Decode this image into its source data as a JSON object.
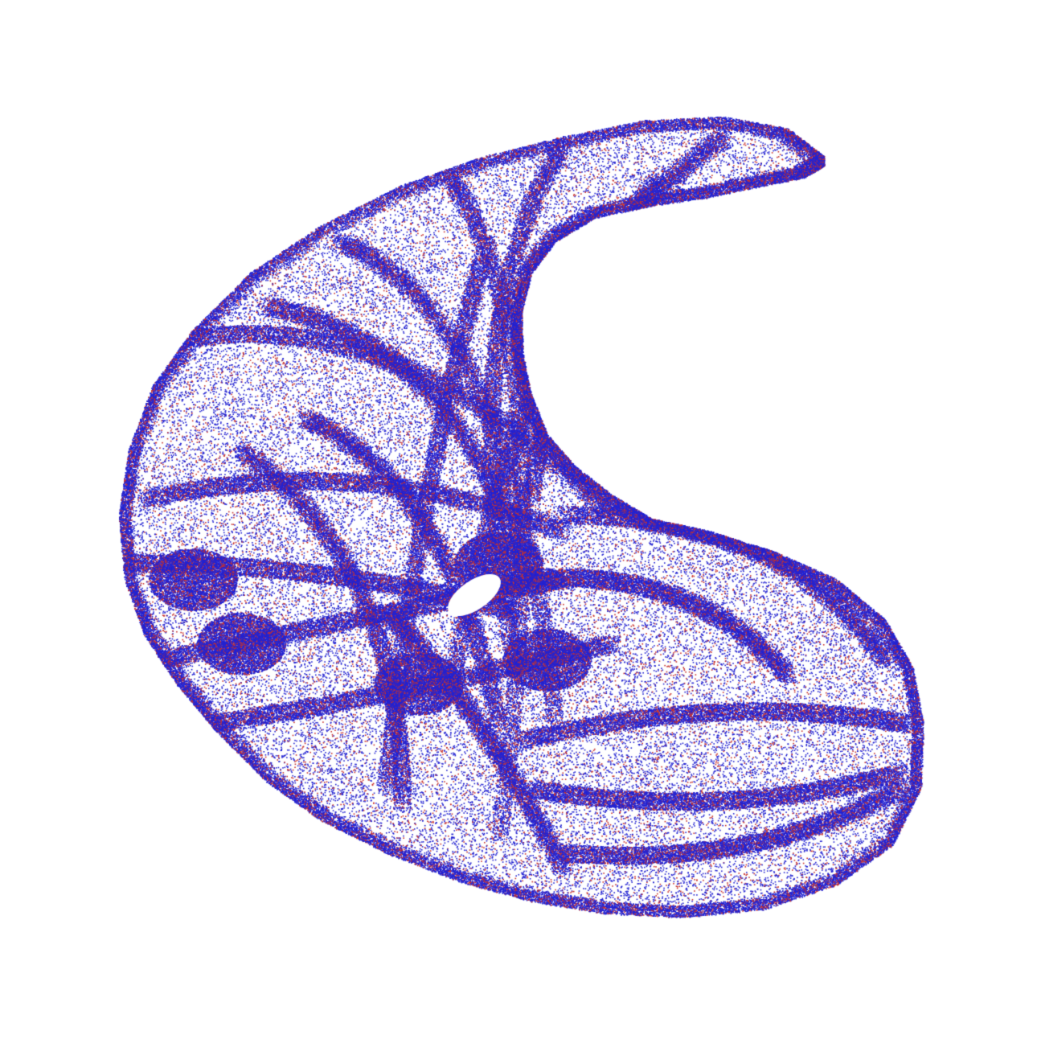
{
  "image": {
    "subject": "strange-attractor-point-cloud",
    "background_color": "#ffffff",
    "colors": {
      "primary_points": "#2323d2",
      "secondary_points": "#c8322d",
      "secondary_ratio": 0.22
    }
  }
}
